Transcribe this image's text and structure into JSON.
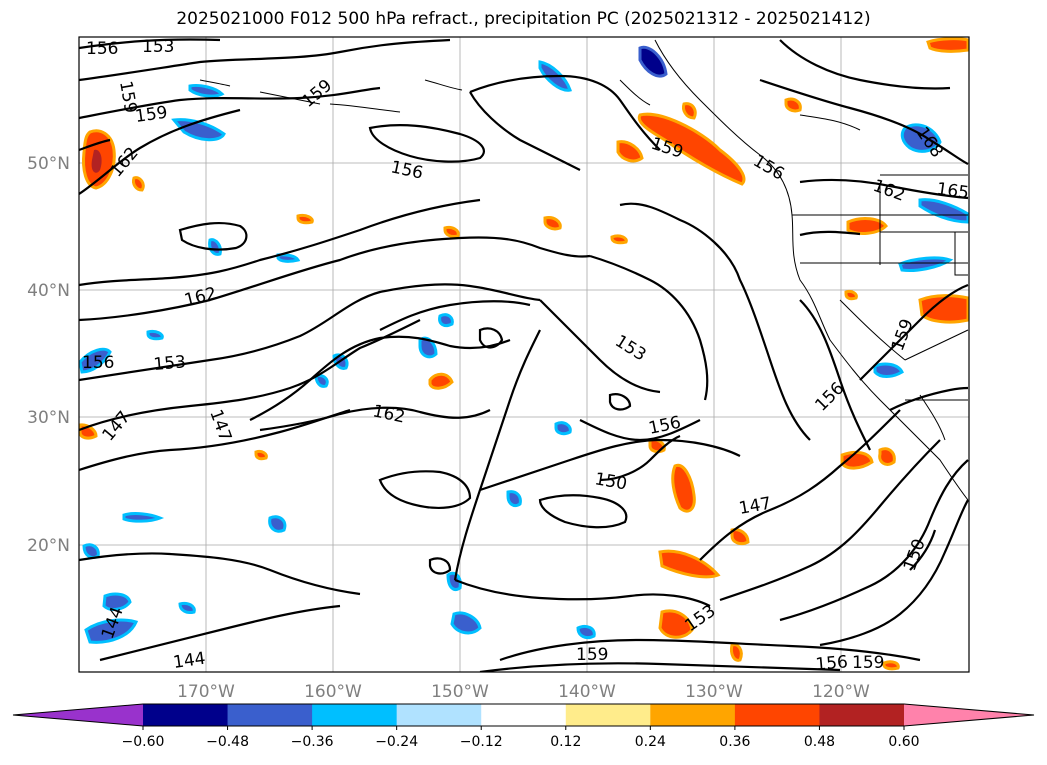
{
  "title": "2025021000 F012 500 hPa refract., precipitation PC (2025021312 - 2025021412)",
  "lat_labels": [
    "50°N",
    "40°N",
    "30°N",
    "20°N"
  ],
  "lon_labels": [
    "170°W",
    "160°W",
    "150°W",
    "140°W",
    "130°W",
    "120°W"
  ],
  "contour_labels": [
    {
      "text": "156"
    },
    {
      "text": "153"
    },
    {
      "text": "159"
    },
    {
      "text": "159"
    },
    {
      "text": "162"
    },
    {
      "text": "156"
    },
    {
      "text": "162"
    },
    {
      "text": "153"
    },
    {
      "text": "156"
    },
    {
      "text": "147"
    },
    {
      "text": "147"
    },
    {
      "text": "162"
    },
    {
      "text": "153"
    },
    {
      "text": "156"
    },
    {
      "text": "150"
    },
    {
      "text": "147"
    },
    {
      "text": "150"
    },
    {
      "text": "156"
    },
    {
      "text": "159"
    },
    {
      "text": "162"
    },
    {
      "text": "165"
    },
    {
      "text": "168"
    },
    {
      "text": "159"
    },
    {
      "text": "156"
    },
    {
      "text": "159"
    },
    {
      "text": "144"
    },
    {
      "text": "144"
    },
    {
      "text": "159"
    },
    {
      "text": "153"
    },
    {
      "text": "156"
    },
    {
      "text": "159"
    }
  ],
  "colorbar": {
    "ticks": [
      "−0.60",
      "−0.48",
      "−0.36",
      "−0.24",
      "−0.12",
      "0.12",
      "0.24",
      "0.36",
      "0.48",
      "0.60"
    ],
    "colors": [
      "#9932cc",
      "#00008b",
      "#3a5fcd",
      "#00bfff",
      "#b0e2ff",
      "#ffffff",
      "#ffec8b",
      "#ffa500",
      "#ff4500",
      "#b22222",
      "#ff82ab"
    ]
  }
}
